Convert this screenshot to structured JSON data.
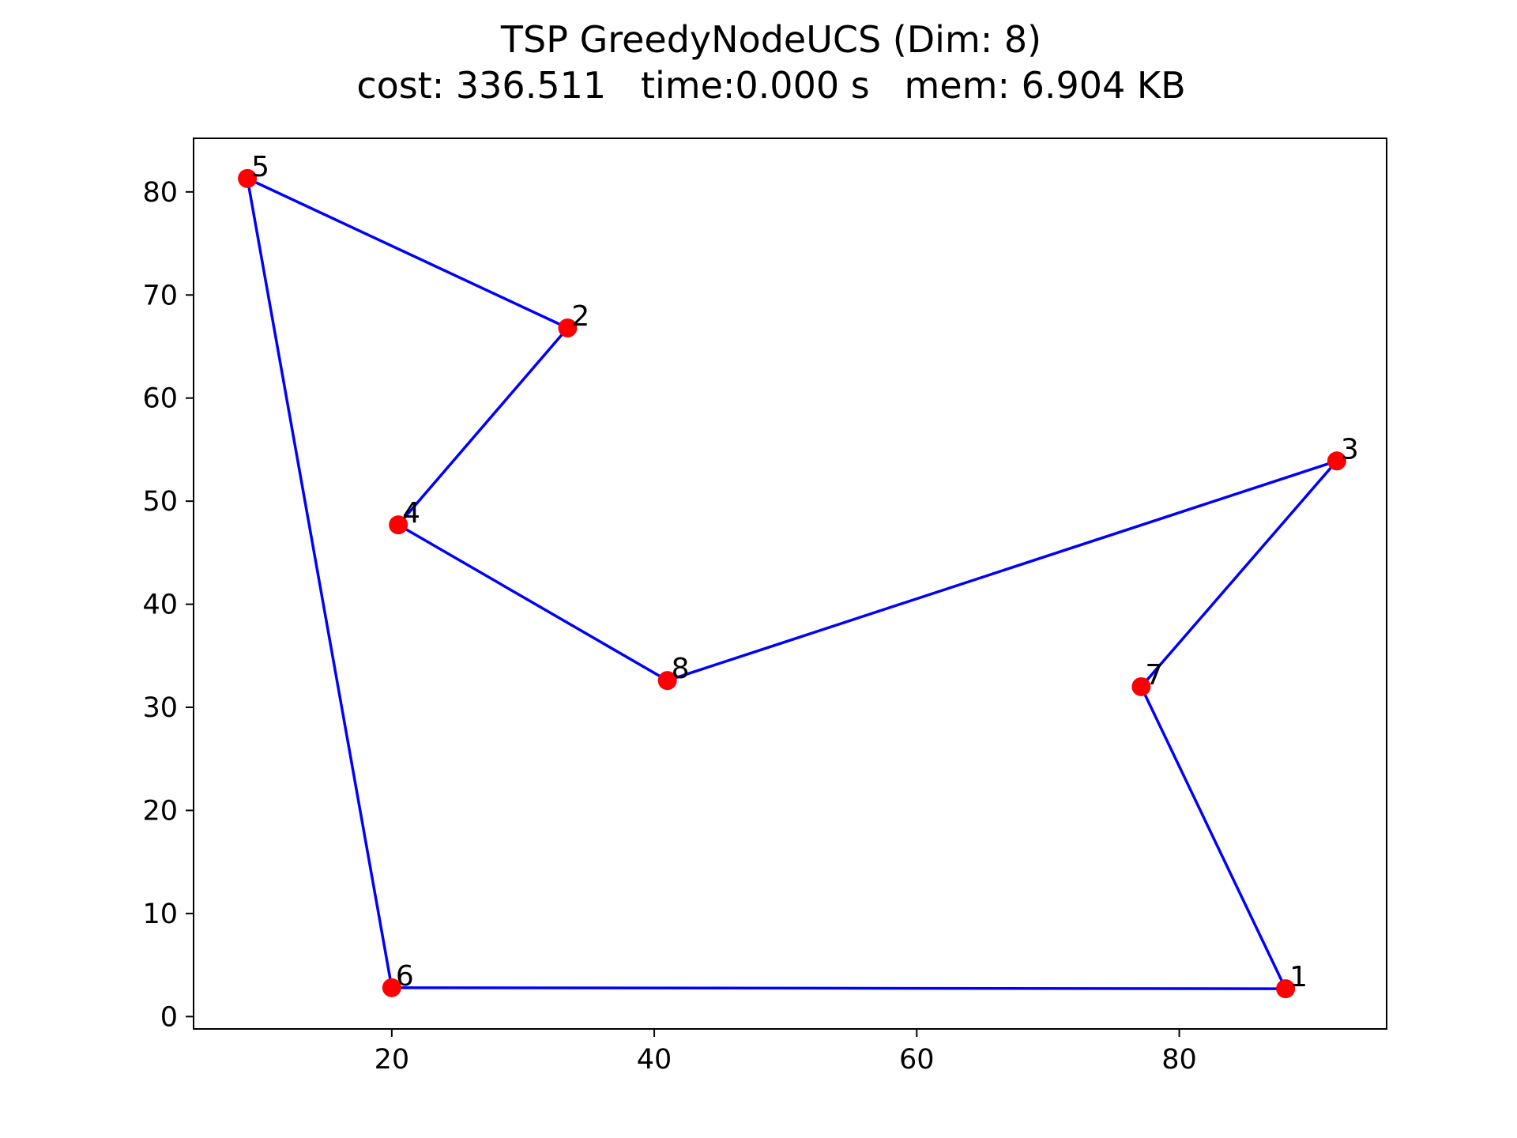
{
  "chart_data": {
    "type": "scatter",
    "title": "TSP GreedyNodeUCS (Dim: 8)",
    "subtitle": "cost: 336.511   time:0.000 s   mem: 6.904 KB",
    "xlabel": "",
    "ylabel": "",
    "xlim": [
      4.9,
      95.8
    ],
    "ylim": [
      -1.2,
      85.2
    ],
    "xticks": [
      20,
      40,
      60,
      80
    ],
    "yticks": [
      0,
      10,
      20,
      30,
      40,
      50,
      60,
      70,
      80
    ],
    "grid": false,
    "legend": "none",
    "nodes": [
      {
        "id": "1",
        "x": 88.1,
        "y": 2.7
      },
      {
        "id": "2",
        "x": 33.4,
        "y": 66.8
      },
      {
        "id": "3",
        "x": 92.0,
        "y": 53.9
      },
      {
        "id": "4",
        "x": 20.5,
        "y": 47.7
      },
      {
        "id": "5",
        "x": 9.0,
        "y": 81.3
      },
      {
        "id": "6",
        "x": 20.0,
        "y": 2.8
      },
      {
        "id": "7",
        "x": 77.1,
        "y": 32.0
      },
      {
        "id": "8",
        "x": 41.0,
        "y": 32.6
      }
    ],
    "tour": [
      "1",
      "6",
      "5",
      "2",
      "4",
      "8",
      "3",
      "7",
      "1"
    ],
    "colors": {
      "node": "#ff0000",
      "edge": "#0000ff",
      "axes": "#000000",
      "background": "#ffffff"
    }
  }
}
